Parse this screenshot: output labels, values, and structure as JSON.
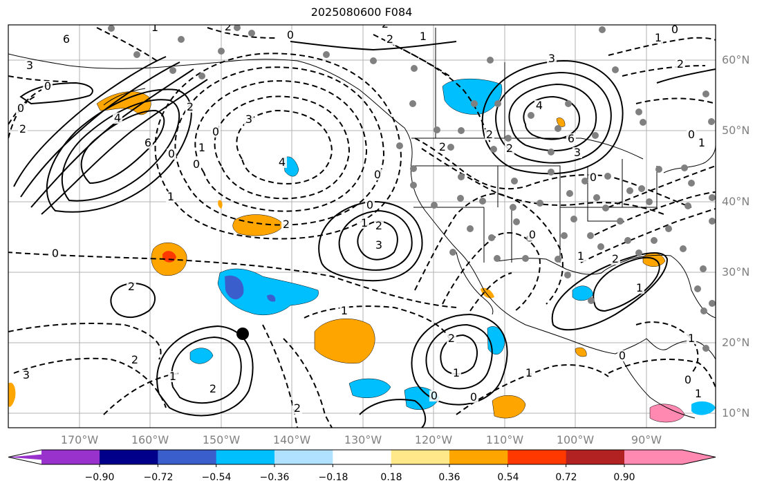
{
  "title": "2025080600 F084",
  "lat_labels": [
    "60°N",
    "50°N",
    "40°N",
    "30°N",
    "20°N",
    "10°N"
  ],
  "lon_labels": [
    "170°W",
    "160°W",
    "150°W",
    "140°W",
    "130°W",
    "120°W",
    "110°W",
    "100°W",
    "90°W"
  ],
  "colorbar": {
    "ticks": [
      "−0.90",
      "−0.72",
      "−0.54",
      "−0.36",
      "−0.18",
      "0.18",
      "0.36",
      "0.54",
      "0.72",
      "0.90"
    ],
    "colors": [
      "#9932cc",
      "#00008b",
      "#3a5fcd",
      "#00bfff",
      "#b0e2ff",
      "#ffffff",
      "#ffe88a",
      "#ffa500",
      "#ff3800",
      "#b22222",
      "#ff89b0"
    ],
    "extend": "both"
  },
  "contour_labels": [
    "0",
    "6",
    "3",
    "0",
    "2",
    "1",
    "0",
    "3",
    "2",
    "2",
    "1",
    "2",
    "4",
    "6",
    "2",
    "0",
    "1",
    "3",
    "4",
    "2",
    "0",
    "0",
    "1",
    "2",
    "3",
    "4",
    "6",
    "3",
    "0",
    "2",
    "1",
    "0",
    "1",
    "2",
    "2",
    "2",
    "1",
    "0",
    "2",
    "0",
    "1",
    "2",
    "1",
    "0",
    "0",
    "1",
    "1",
    "0",
    "1",
    "0",
    "2",
    "2",
    "1",
    "3",
    "0",
    "2",
    "0",
    "1",
    "2",
    "0",
    "1"
  ],
  "colors": {
    "negative_contour": "#000000",
    "grid": "#b0b0b0",
    "station_dot": "#808080",
    "axis_text": "#808080"
  }
}
